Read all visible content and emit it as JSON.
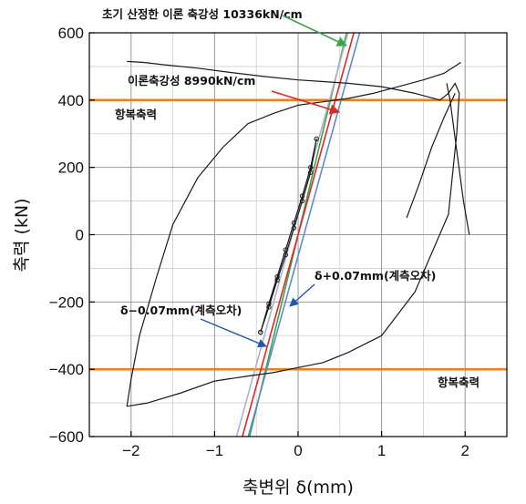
{
  "chart_data": {
    "type": "line",
    "xlabel": "축변위 δ(mm)",
    "ylabel": "축력 (kN)",
    "xlim": [
      -2.5,
      2.5
    ],
    "ylim": [
      -600,
      600
    ],
    "x_ticks": [
      -2,
      -1,
      0,
      1,
      2
    ],
    "x_tick_labels": [
      "−2",
      "−1",
      "0",
      "1",
      "2"
    ],
    "y_ticks": [
      -600,
      -400,
      -200,
      0,
      200,
      400,
      600
    ],
    "y_tick_labels": [
      "−600",
      "−400",
      "−200",
      "0",
      "200",
      "400",
      "600"
    ],
    "grid": true,
    "minor_x_grid_step": 0.5,
    "minor_y_grid_step": 100,
    "reference_lines": [
      {
        "orientation": "horizontal",
        "y": 400,
        "color": "#e8821e",
        "label": "항복축력"
      },
      {
        "orientation": "horizontal",
        "y": -400,
        "color": "#e8821e",
        "label": "항복축력"
      }
    ],
    "series": [
      {
        "name": "",
        "color": "#1a1a1a",
        "kind": "hysteresis-loop",
        "x": [
          -2.05,
          -1.8,
          -1.4,
          -1.0,
          -0.6,
          -0.3,
          0.0,
          0.3,
          0.6,
          1.0,
          1.4,
          1.8,
          1.9,
          1.93,
          1.88,
          1.8,
          1.7,
          1.4,
          1.0,
          0.6,
          0.3,
          0.0,
          -0.4,
          -0.8,
          -1.2,
          -1.6,
          -1.85,
          -2.05
        ],
        "y": [
          -510,
          -500,
          -470,
          -435,
          -420,
          -410,
          -395,
          -380,
          -350,
          -300,
          -170,
          60,
          300,
          420,
          450,
          420,
          400,
          420,
          440,
          450,
          455,
          460,
          470,
          482,
          495,
          505,
          512,
          515
        ]
      },
      {
        "name": "",
        "color": "#1a1a1a",
        "kind": "hysteresis-loop-upper",
        "x": [
          -2.05,
          -2.0,
          -1.9,
          -1.7,
          -1.5,
          -1.2,
          -0.9,
          -0.6,
          -0.3,
          0.0,
          0.3,
          0.6,
          0.9,
          1.2,
          1.5,
          1.75,
          1.95
        ],
        "y": [
          -510,
          -430,
          -300,
          -130,
          30,
          170,
          260,
          330,
          360,
          385,
          395,
          405,
          420,
          440,
          460,
          480,
          512
        ]
      },
      {
        "name": "",
        "color": "#1a1a1a",
        "kind": "unloading-tail",
        "x": [
          1.78,
          1.82,
          1.9,
          1.98,
          2.05
        ],
        "y": [
          450,
          400,
          250,
          100,
          0
        ]
      },
      {
        "name": "",
        "color": "#1a1a1a",
        "kind": "unloading-tail-2",
        "x": [
          1.3,
          1.45,
          1.6,
          1.75,
          1.88
        ],
        "y": [
          50,
          150,
          260,
          350,
          420
        ]
      },
      {
        "name": "",
        "color": "#1a1a1a",
        "kind": "elastic-cycles",
        "x": [
          -0.45,
          -0.35,
          -0.25,
          -0.15,
          -0.05,
          0.05,
          0.15,
          0.22,
          0.15,
          0.05,
          -0.05,
          -0.15,
          -0.25,
          -0.35,
          -0.45
        ],
        "y": [
          -290,
          -215,
          -135,
          -60,
          20,
          100,
          185,
          285,
          200,
          115,
          35,
          -45,
          -125,
          -205,
          -290
        ]
      }
    ],
    "theory_lines": [
      {
        "label": "초기 산정한 이론 축강성 10336kN/cm",
        "color": "#3aa64a",
        "slope_kN_per_mm": 1033.6,
        "x_intercept": 0.0
      },
      {
        "label": "이론축강성 8990kN/cm",
        "color": "#e02828",
        "slope_kN_per_mm": 899.0,
        "x_intercept": 0.0
      },
      {
        "label": "δ+0.07mm(계측오차)",
        "color": "#5b8ccd",
        "slope_kN_per_mm": 899.0,
        "x_intercept": 0.07
      },
      {
        "label": "δ−0.07mm(계측오차)",
        "color": "#b0b0c8",
        "slope_kN_per_mm": 899.0,
        "x_intercept": -0.07
      }
    ],
    "annotations": [
      {
        "text": "초기 산정한 이론 축강성 10336kN/cm",
        "arrow_color": "#3aa64a",
        "target": [
          0.48,
          600
        ]
      },
      {
        "text": "이론축강성 8990kN/cm",
        "arrow_color": "#e02828",
        "target": [
          0.38,
          365
        ]
      },
      {
        "text": "항복축력",
        "target": null
      },
      {
        "text": "δ+0.07mm(계측오차)",
        "arrow_color": "#2255aa",
        "target": [
          -0.1,
          -245
        ]
      },
      {
        "text": "δ−0.07mm(계측오차)",
        "arrow_color": "#2255aa",
        "target": [
          -0.45,
          -335
        ]
      },
      {
        "text": "항복축력",
        "target": null
      }
    ]
  }
}
